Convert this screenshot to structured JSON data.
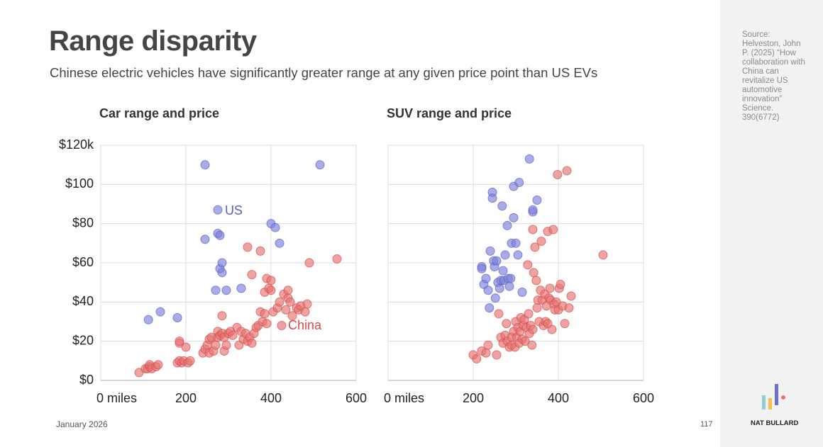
{
  "slide": {
    "title": "Range disparity",
    "subtitle": "Chinese electric vehicles have significantly greater range at any given price point than US EVs",
    "source": "Source: Helveston, John P. (2025) “How collaboration with China can revitalize US automotive innovation” Science. 390(6772)",
    "date": "January 2026",
    "page": 117,
    "brand": "NAT BULLARD"
  },
  "chart_data": [
    {
      "type": "scatter",
      "title": "Car range and price",
      "xlim": [
        0,
        600
      ],
      "ylim": [
        0,
        120
      ],
      "xticks": [
        {
          "value": 0,
          "label": "0 miles"
        },
        200,
        400,
        600
      ],
      "yticks": [
        {
          "value": 0,
          "label": "$0"
        },
        {
          "value": 20,
          "label": "$20"
        },
        {
          "value": 40,
          "label": "$40"
        },
        {
          "value": 60,
          "label": "$60"
        },
        {
          "value": 80,
          "label": "$80"
        },
        {
          "value": 100,
          "label": "$100"
        },
        {
          "value": 120,
          "label": "$120k"
        }
      ],
      "ytick_labels": true,
      "grid": true,
      "series": [
        {
          "name": "US",
          "color": "#7b80dd",
          "x": [
            112,
            140,
            180,
            245,
            245,
            270,
            275,
            275,
            280,
            280,
            285,
            285,
            295,
            330,
            400,
            410,
            420,
            515
          ],
          "values": [
            31,
            35,
            32,
            110,
            72,
            46,
            87,
            75,
            74,
            57,
            55,
            60,
            46,
            47,
            80,
            78,
            70,
            110
          ]
        },
        {
          "name": "China",
          "color": "#e8716f",
          "x": [
            90,
            105,
            110,
            115,
            115,
            120,
            130,
            135,
            180,
            185,
            190,
            195,
            205,
            210,
            185,
            185,
            200,
            240,
            245,
            250,
            255,
            255,
            260,
            265,
            270,
            275,
            275,
            280,
            285,
            285,
            290,
            290,
            295,
            300,
            305,
            310,
            320,
            325,
            330,
            335,
            340,
            345,
            345,
            350,
            355,
            355,
            360,
            365,
            370,
            375,
            375,
            380,
            385,
            385,
            390,
            390,
            395,
            400,
            400,
            405,
            415,
            420,
            425,
            430,
            435,
            440,
            440,
            445,
            450,
            460,
            465,
            470,
            480,
            485,
            490,
            555
          ],
          "values": [
            4,
            6,
            6,
            7,
            8,
            6,
            7,
            8,
            9,
            10,
            9,
            10,
            9,
            10,
            19,
            20,
            17,
            14,
            16,
            18,
            14,
            21,
            22,
            15,
            18,
            22,
            25,
            23,
            24,
            33,
            15,
            22,
            18,
            24,
            25,
            23,
            27,
            18,
            25,
            21,
            24,
            20,
            68,
            22,
            19,
            54,
            24,
            27,
            28,
            35,
            66,
            30,
            34,
            45,
            52,
            29,
            47,
            46,
            51,
            35,
            37,
            40,
            28,
            44,
            36,
            46,
            42,
            40,
            33,
            37,
            36,
            38,
            35,
            39,
            60,
            62
          ]
        }
      ]
    },
    {
      "type": "scatter",
      "title": "SUV range and price",
      "xlim": [
        0,
        600
      ],
      "ylim": [
        0,
        120
      ],
      "xticks": [
        {
          "value": 0,
          "label": "0 miles"
        },
        200,
        400,
        600
      ],
      "yticks": [
        0,
        20,
        40,
        60,
        80,
        100,
        120
      ],
      "ytick_labels": false,
      "grid": true,
      "series": [
        {
          "color": "#7b80dd",
          "x": [
            220,
            220,
            225,
            230,
            235,
            238,
            240,
            245,
            245,
            248,
            250,
            252,
            255,
            258,
            262,
            265,
            268,
            270,
            272,
            275,
            280,
            282,
            285,
            288,
            290,
            295,
            295,
            300,
            305,
            308,
            315,
            332,
            340,
            340,
            350
          ],
          "values": [
            58,
            57,
            49,
            52,
            46,
            37,
            66,
            96,
            93,
            61,
            58,
            42,
            61,
            50,
            47,
            51,
            89,
            56,
            51,
            64,
            79,
            52,
            48,
            52,
            70,
            83,
            99,
            70,
            64,
            101,
            45,
            113,
            86,
            87,
            92
          ]
        },
        {
          "color": "#e8716f",
          "x": [
            200,
            208,
            220,
            230,
            235,
            255,
            260,
            265,
            270,
            275,
            278,
            280,
            285,
            290,
            290,
            295,
            298,
            300,
            302,
            305,
            308,
            310,
            312,
            315,
            318,
            320,
            322,
            325,
            328,
            330,
            332,
            335,
            338,
            340,
            340,
            342,
            345,
            348,
            350,
            352,
            355,
            358,
            360,
            362,
            365,
            368,
            370,
            372,
            375,
            375,
            378,
            380,
            382,
            385,
            388,
            390,
            392,
            395,
            398,
            400,
            402,
            405,
            410,
            415,
            420,
            425,
            430,
            505
          ],
          "values": [
            13,
            11,
            15,
            14,
            18,
            13,
            34,
            22,
            19,
            23,
            29,
            20,
            17,
            22,
            18,
            25,
            17,
            30,
            22,
            27,
            19,
            25,
            32,
            21,
            28,
            31,
            20,
            27,
            59,
            34,
            24,
            28,
            18,
            77,
            26,
            55,
            68,
            51,
            37,
            41,
            30,
            46,
            71,
            41,
            28,
            44,
            30,
            38,
            29,
            76,
            42,
            47,
            41,
            26,
            77,
            39,
            36,
            40,
            105,
            36,
            47,
            49,
            38,
            29,
            107,
            37,
            43,
            64
          ]
        }
      ]
    }
  ]
}
